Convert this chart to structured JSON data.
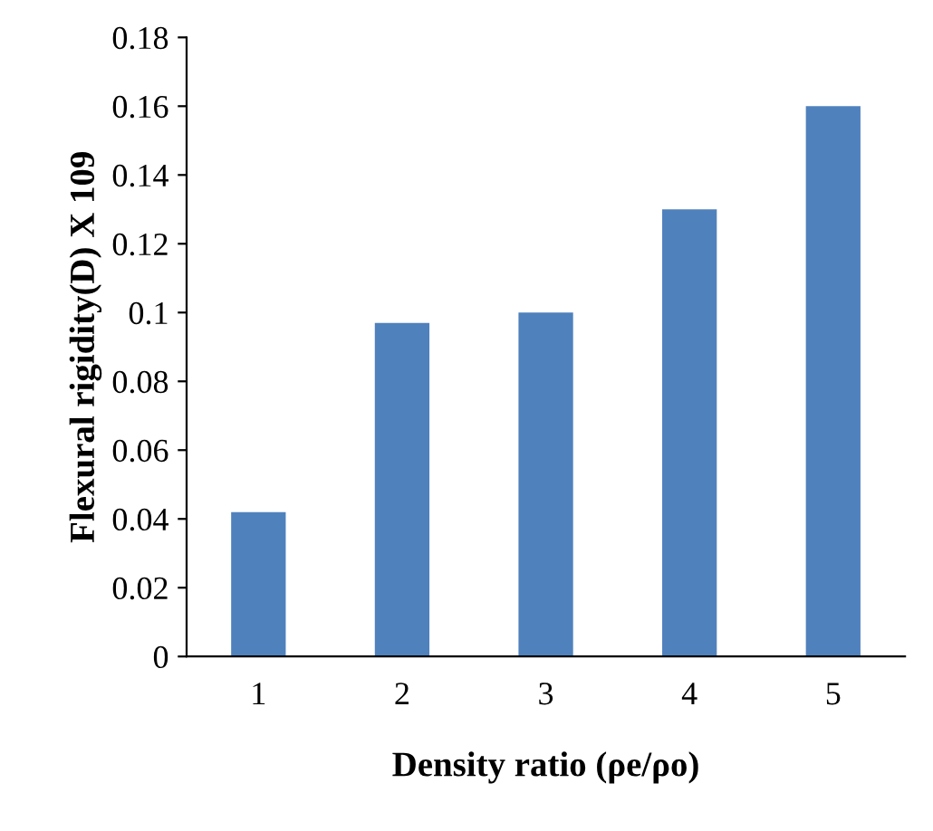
{
  "chart_data": {
    "type": "bar",
    "xlabel": "Density ratio (ρe/ρo)",
    "ylabel": "Flexural rigidity(D) X 109",
    "categories": [
      "1",
      "2",
      "3",
      "4",
      "5"
    ],
    "values": [
      0.042,
      0.097,
      0.1,
      0.13,
      0.16
    ],
    "color": "#4f81bd",
    "ylim": [
      0,
      0.18
    ],
    "yticks": [
      {
        "value": 0,
        "label": "0"
      },
      0.02,
      0.04,
      0.06,
      0.08,
      {
        "value": 0.1,
        "label": "0.1"
      },
      0.12,
      0.14,
      0.16,
      0.18
    ],
    "grid": false,
    "legend": false
  }
}
